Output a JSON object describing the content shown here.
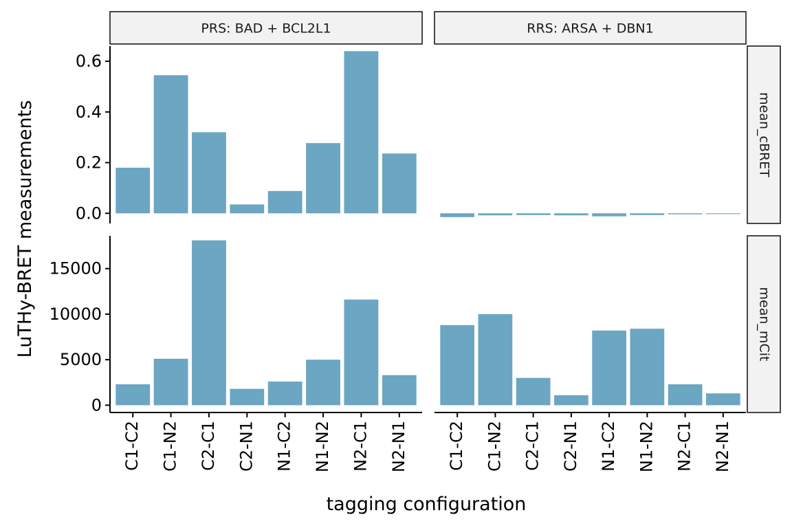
{
  "chart_data": {
    "type": "bar",
    "xlabel": "tagging configuration",
    "ylabel": "LuTHy-BRET measurements",
    "bar_color": "#6BA6C3",
    "strip_fill": "#F2F2F2",
    "categories": [
      "C1-C2",
      "C1-N2",
      "C2-C1",
      "C2-N1",
      "N1-C2",
      "N1-N2",
      "N2-C1",
      "N2-N1"
    ],
    "columns": [
      "PRS: BAD + BCL2L1",
      "RRS: ARSA + DBN1"
    ],
    "rows": [
      {
        "name": "mean_cBRET",
        "ylim": [
          -0.04,
          0.66
        ],
        "yticks": [
          0.0,
          0.2,
          0.4,
          0.6
        ],
        "ytick_labels": [
          "0.0",
          "0.2",
          "0.4",
          "0.6"
        ],
        "series": [
          {
            "name": "PRS: BAD + BCL2L1",
            "values": [
              0.18,
              0.545,
              0.32,
              0.035,
              0.088,
              0.277,
              0.64,
              0.236
            ]
          },
          {
            "name": "RRS: ARSA + DBN1",
            "values": [
              -0.015,
              -0.008,
              -0.007,
              -0.008,
              -0.012,
              -0.007,
              -0.004,
              -0.003
            ]
          }
        ]
      },
      {
        "name": "mean_mCit",
        "ylim": [
          -800,
          18600
        ],
        "yticks": [
          0,
          5000,
          10000,
          15000
        ],
        "ytick_labels": [
          "0",
          "5000",
          "10000",
          "15000"
        ],
        "series": [
          {
            "name": "PRS: BAD + BCL2L1",
            "values": [
              2300,
              5100,
              18100,
              1800,
              2600,
              5000,
              11600,
              3300
            ]
          },
          {
            "name": "RRS: ARSA + DBN1",
            "values": [
              8800,
              10000,
              3000,
              1100,
              8200,
              8400,
              2300,
              1300
            ]
          }
        ]
      }
    ]
  }
}
